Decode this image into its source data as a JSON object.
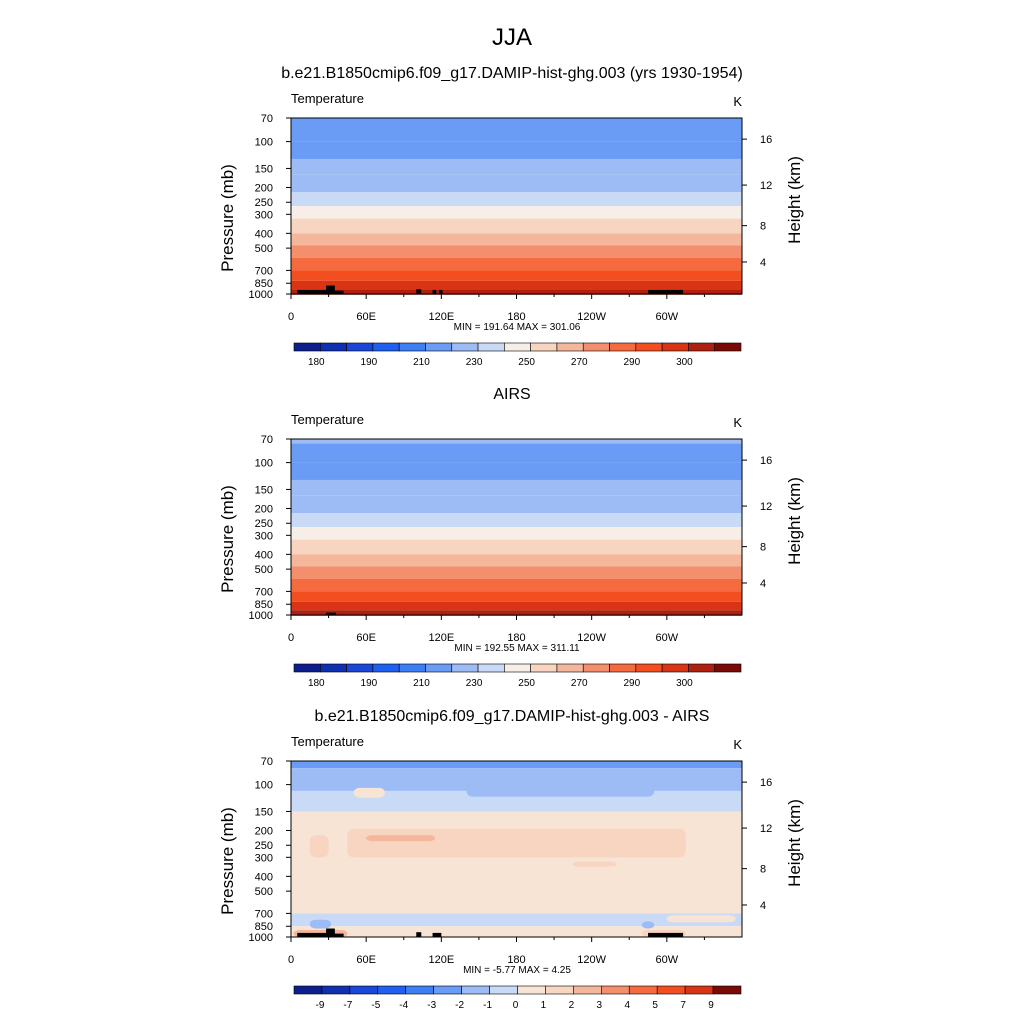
{
  "figure": {
    "title": "JJA"
  },
  "chart_data": [
    {
      "type": "heatmap",
      "title": "b.e21.B1850cmip6.f09_g17.DAMIP-hist-ghg.003 (yrs 1930-1954)",
      "left_label": "Temperature",
      "units": "K",
      "ylabel": "Pressure (mb)",
      "ylabel_right": "Height (km)",
      "x_ticks": [
        "0",
        "60E",
        "120E",
        "180",
        "120W",
        "60W"
      ],
      "p_ticks": [
        "70",
        "100",
        "150",
        "200",
        "250",
        "300",
        "400",
        "500",
        "700",
        "850",
        "1000"
      ],
      "h_ticks": [
        "16",
        "12",
        "8",
        "4"
      ],
      "stats": "MIN = 191.64  MAX = 301.06",
      "colorbar_labels": [
        "180",
        "190",
        "210",
        "230",
        "250",
        "270",
        "290",
        "300"
      ],
      "bands": [
        {
          "p": 70,
          "v": 205
        },
        {
          "p": 100,
          "v": 205
        },
        {
          "p": 130,
          "v": 210
        },
        {
          "p": 165,
          "v": 215
        },
        {
          "p": 215,
          "v": 220
        },
        {
          "p": 265,
          "v": 230
        },
        {
          "p": 320,
          "v": 240
        },
        {
          "p": 400,
          "v": 250
        },
        {
          "p": 480,
          "v": 260
        },
        {
          "p": 580,
          "v": 270
        },
        {
          "p": 700,
          "v": 280
        },
        {
          "p": 820,
          "v": 285
        },
        {
          "p": 930,
          "v": 290
        },
        {
          "p": 1000,
          "v": 295
        }
      ],
      "topography": [
        {
          "lon0": 5,
          "lon1": 35,
          "p": 940
        },
        {
          "lon0": 28,
          "lon1": 35,
          "p": 880
        },
        {
          "lon0": 35,
          "lon1": 42,
          "p": 950
        },
        {
          "lon0": 100,
          "lon1": 104,
          "p": 930
        },
        {
          "lon0": 113,
          "lon1": 116,
          "p": 940
        },
        {
          "lon0": 118,
          "lon1": 121,
          "p": 940
        },
        {
          "lon0": 285,
          "lon1": 313,
          "p": 940
        }
      ]
    },
    {
      "type": "heatmap",
      "title": "AIRS",
      "left_label": "Temperature",
      "units": "K",
      "ylabel": "Pressure (mb)",
      "ylabel_right": "Height (km)",
      "x_ticks": [
        "0",
        "60E",
        "120E",
        "180",
        "120W",
        "60W"
      ],
      "p_ticks": [
        "70",
        "100",
        "150",
        "200",
        "250",
        "300",
        "400",
        "500",
        "700",
        "850",
        "1000"
      ],
      "h_ticks": [
        "16",
        "12",
        "8",
        "4"
      ],
      "stats": "MIN = 192.55  MAX = 311.11",
      "colorbar_labels": [
        "180",
        "190",
        "210",
        "230",
        "250",
        "270",
        "290",
        "300"
      ],
      "bands": [
        {
          "p": 70,
          "v": 210
        },
        {
          "p": 75,
          "v": 205
        },
        {
          "p": 100,
          "v": 205
        },
        {
          "p": 130,
          "v": 210
        },
        {
          "p": 165,
          "v": 215
        },
        {
          "p": 215,
          "v": 220
        },
        {
          "p": 265,
          "v": 230
        },
        {
          "p": 320,
          "v": 240
        },
        {
          "p": 400,
          "v": 250
        },
        {
          "p": 480,
          "v": 260
        },
        {
          "p": 580,
          "v": 270
        },
        {
          "p": 700,
          "v": 280
        },
        {
          "p": 820,
          "v": 285
        },
        {
          "p": 930,
          "v": 290
        },
        {
          "p": 1000,
          "v": 295
        }
      ],
      "topography": [
        {
          "lon0": 28,
          "lon1": 36,
          "p": 965
        }
      ]
    },
    {
      "type": "heatmap",
      "title": "b.e21.B1850cmip6.f09_g17.DAMIP-hist-ghg.003 - AIRS",
      "left_label": "Temperature",
      "units": "K",
      "ylabel": "Pressure (mb)",
      "ylabel_right": "Height (km)",
      "x_ticks": [
        "0",
        "60E",
        "120E",
        "180",
        "120W",
        "60W"
      ],
      "p_ticks": [
        "70",
        "100",
        "150",
        "200",
        "250",
        "300",
        "400",
        "500",
        "700",
        "850",
        "1000"
      ],
      "h_ticks": [
        "16",
        "12",
        "8",
        "4"
      ],
      "stats": "MIN =  -5.77  MAX =   4.25",
      "colorbar_labels": [
        "-9",
        "-7",
        "-5",
        "-4",
        "-3",
        "-2",
        "-1",
        "0",
        "1",
        "2",
        "3",
        "4",
        "5",
        "7",
        "9"
      ],
      "bands": [
        {
          "p": 70,
          "v": -2.5
        },
        {
          "p": 78,
          "v": -1.5
        },
        {
          "p": 110,
          "v": -0.5
        },
        {
          "p": 150,
          "v": 0.5
        },
        {
          "p": 700,
          "v": -0.5
        },
        {
          "p": 850,
          "v": 0.5
        }
      ],
      "patches": [
        {
          "lon0": 140,
          "lon1": 290,
          "p0": 82,
          "p1": 120,
          "v": -1.5
        },
        {
          "lon0": 50,
          "lon1": 75,
          "p0": 105,
          "p1": 122,
          "v": 0.5
        },
        {
          "lon0": 45,
          "lon1": 315,
          "p0": 195,
          "p1": 300,
          "v": 1.5
        },
        {
          "lon0": 60,
          "lon1": 115,
          "p0": 215,
          "p1": 235,
          "v": 2.5
        },
        {
          "lon0": 15,
          "lon1": 30,
          "p0": 215,
          "p1": 300,
          "v": 1.5
        },
        {
          "lon0": 225,
          "lon1": 260,
          "p0": 320,
          "p1": 345,
          "v": 1.5
        },
        {
          "lon0": 300,
          "lon1": 355,
          "p0": 720,
          "p1": 800,
          "v": 0.5
        },
        {
          "lon0": 15,
          "lon1": 32,
          "p0": 770,
          "p1": 880,
          "v": -1.5
        },
        {
          "lon0": 280,
          "lon1": 290,
          "p0": 790,
          "p1": 880,
          "v": -1.5
        },
        {
          "lon0": 2,
          "lon1": 45,
          "p0": 900,
          "p1": 1000,
          "v": 2.5
        },
        {
          "lon0": 280,
          "lon1": 315,
          "p0": 900,
          "p1": 1000,
          "v": 1.5
        }
      ],
      "topography": [
        {
          "lon0": 5,
          "lon1": 35,
          "p": 940
        },
        {
          "lon0": 28,
          "lon1": 35,
          "p": 880
        },
        {
          "lon0": 35,
          "lon1": 42,
          "p": 950
        },
        {
          "lon0": 100,
          "lon1": 104,
          "p": 930
        },
        {
          "lon0": 113,
          "lon1": 120,
          "p": 940
        },
        {
          "lon0": 285,
          "lon1": 313,
          "p": 940
        }
      ]
    }
  ],
  "colors": {
    "abs_palette": [
      "#0d1f8c",
      "#1030b2",
      "#1a47d8",
      "#2060f0",
      "#3d7ef5",
      "#6a9bf5",
      "#9dbbf5",
      "#c9daf6",
      "#f7efe7",
      "#f7d5c0",
      "#f4b79b",
      "#f38f6c",
      "#f56a3e",
      "#f24e20",
      "#d93515",
      "#b02010",
      "#7a0a05"
    ],
    "diff_palette": [
      "#0d1f8c",
      "#1030b2",
      "#1a47d8",
      "#2060f0",
      "#3d7ef5",
      "#6a9bf5",
      "#9dbbf5",
      "#c9daf6",
      "#f7e4d4",
      "#f7d5c0",
      "#f4b79b",
      "#f38f6c",
      "#f56a3e",
      "#f24e20",
      "#d93515",
      "#7a0a05"
    ],
    "topo": "#000000"
  }
}
